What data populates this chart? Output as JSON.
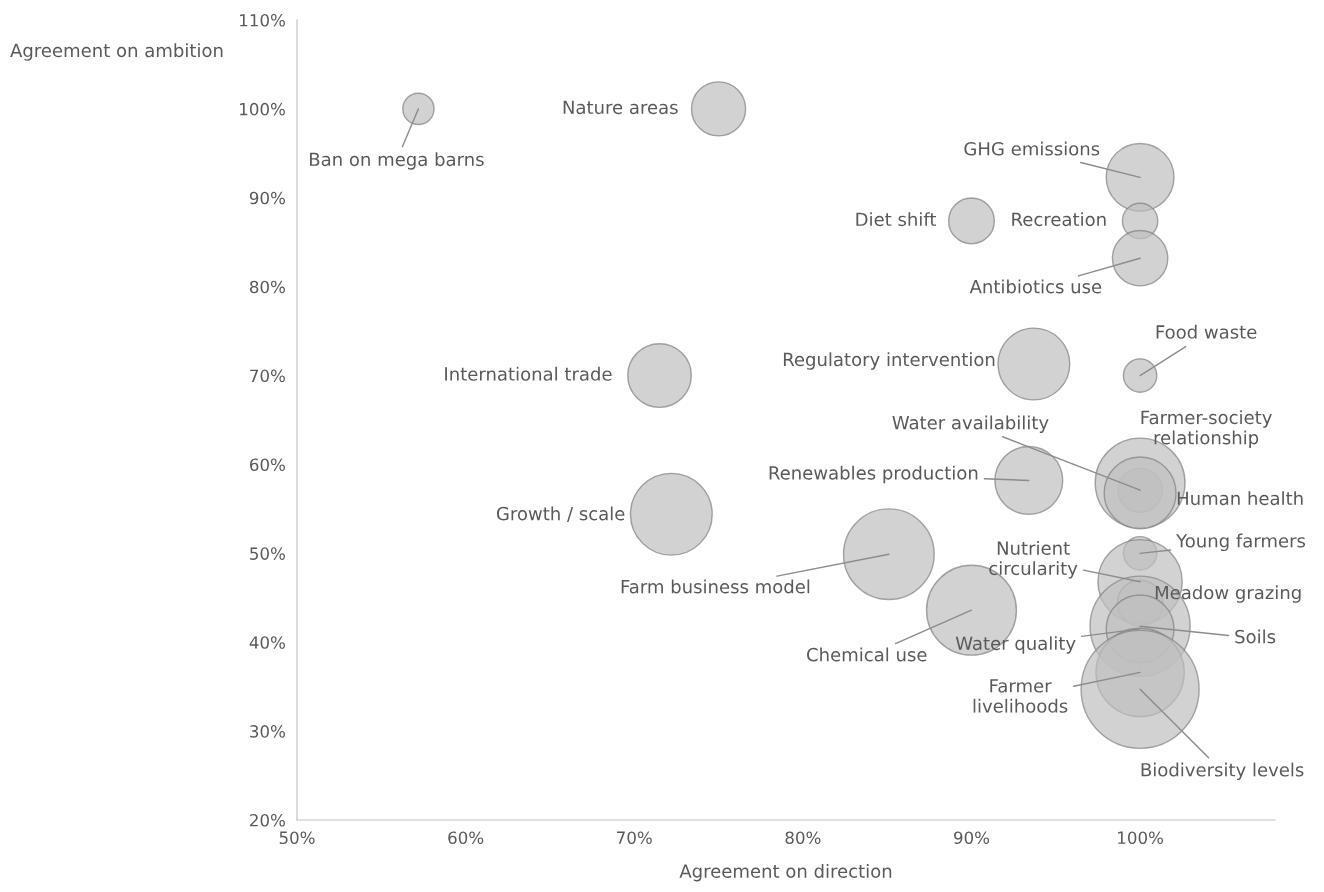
{
  "chart_data": {
    "type": "bubble",
    "xlabel": "Agreement on direction",
    "ylabel": "Agreement on ambition",
    "x": [
      57.2,
      75,
      100,
      90,
      100,
      100,
      71.5,
      93.7,
      100,
      93.4,
      72.2,
      85.1,
      90,
      100,
      100,
      100,
      100,
      100,
      100,
      100,
      100,
      100,
      100
    ],
    "series": [
      {
        "color": "#bfbfbf",
        "values": [
          100,
          100,
          92.3,
          87.4,
          87.4,
          83.2,
          70,
          71.3,
          70,
          58.2,
          54.4,
          49.9,
          43.6,
          57.1,
          57.9,
          56.8,
          50,
          46.8,
          44.4,
          41.8,
          41.5,
          36.6,
          34.7
        ],
        "sizes": [
          0.07,
          0.21,
          0.33,
          0.15,
          0.09,
          0.22,
          0.29,
          0.37,
          0.08,
          0.33,
          0.48,
          0.59,
          0.58,
          0.14,
          0.58,
          0.37,
          0.08,
          0.51,
          0.15,
          0.72,
          0.33,
          0.56,
          1
        ]
      }
    ],
    "annotations": [
      {
        "text": "Ban on mega barns",
        "x": 57.2,
        "y": 100
      },
      {
        "text": "Nature areas",
        "x": 75,
        "y": 100
      },
      {
        "text": "GHG emissions",
        "x": 100,
        "y": 92.3
      },
      {
        "text": "Diet shift",
        "x": 90,
        "y": 87.4
      },
      {
        "text": "Recreation",
        "x": 100,
        "y": 87.4
      },
      {
        "text": "Antibiotics use",
        "x": 100,
        "y": 83.2
      },
      {
        "text": "International trade",
        "x": 71.5,
        "y": 70
      },
      {
        "text": "Regulatory intervention",
        "x": 93.7,
        "y": 71.3
      },
      {
        "text": "Food waste",
        "x": 100,
        "y": 70
      },
      {
        "text": "Renewables production",
        "x": 93.4,
        "y": 58.2
      },
      {
        "text": "Growth / scale",
        "x": 72.2,
        "y": 54.4
      },
      {
        "text": "Farm business model",
        "x": 85.1,
        "y": 49.9
      },
      {
        "text": "Chemical use",
        "x": 90,
        "y": 43.6
      },
      {
        "text": "Water availability",
        "x": 100,
        "y": 57.1
      },
      {
        "text": "Farmer-society\nrelationship",
        "x": 100,
        "y": 57.9
      },
      {
        "text": "Human health",
        "x": 100,
        "y": 56.8
      },
      {
        "text": "Young farmers",
        "x": 100,
        "y": 50
      },
      {
        "text": "Nutrient\ncircularity",
        "x": 100,
        "y": 46.8
      },
      {
        "text": "Meadow grazing",
        "x": 100,
        "y": 44.4
      },
      {
        "text": "Soils",
        "x": 100,
        "y": 41.8
      },
      {
        "text": "Water quality",
        "x": 100,
        "y": 41.5
      },
      {
        "text": "Farmer\nlivelihoods",
        "x": 100,
        "y": 36.6
      },
      {
        "text": "Biodiversity levels",
        "x": 100,
        "y": 34.7
      }
    ],
    "xlim": [
      50,
      108
    ],
    "xticks": [
      {
        "value": 50,
        "label": "50%"
      },
      {
        "value": 60,
        "label": "60%"
      },
      {
        "value": 70,
        "label": "70%"
      },
      {
        "value": 80,
        "label": "80%"
      },
      {
        "value": 90,
        "label": "90%"
      },
      {
        "value": 100,
        "label": "100%"
      }
    ],
    "ylim": [
      20,
      110
    ],
    "yticks": [
      {
        "value": 20,
        "label": "20%"
      },
      {
        "value": 30,
        "label": "30%"
      },
      {
        "value": 40,
        "label": "40%"
      },
      {
        "value": 50,
        "label": "50%"
      },
      {
        "value": 60,
        "label": "60%"
      },
      {
        "value": 70,
        "label": "70%"
      },
      {
        "value": 80,
        "label": "80%"
      },
      {
        "value": 90,
        "label": "90%"
      },
      {
        "value": 100,
        "label": "100%"
      },
      {
        "value": 110,
        "label": "110%"
      }
    ],
    "grid": false,
    "legend": false
  }
}
